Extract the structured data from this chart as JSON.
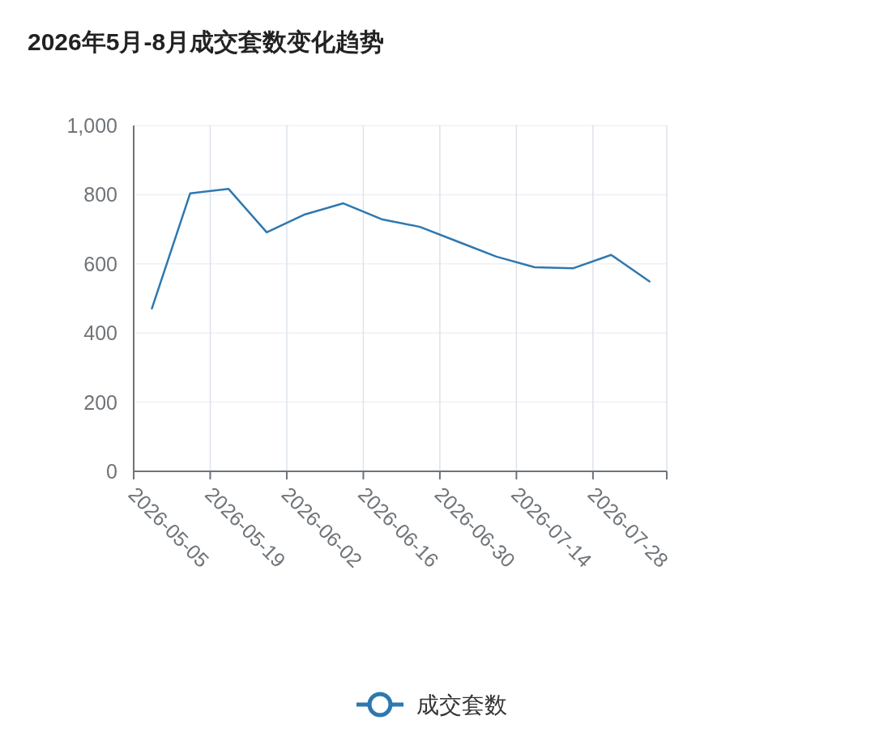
{
  "chart_data": {
    "type": "line",
    "title": "2026年5月-8月成交套数变化趋势",
    "x": [
      "2026-05-08T08:00",
      "2026-05-15T08:00",
      "2026-05-22T08:00",
      "2026-05-29T08:00",
      "2026-06-05T08:00",
      "2026-06-12T08:00",
      "2026-06-19T08:00",
      "2026-06-26T08:00",
      "2026-07-03T08:00",
      "2026-07-10T08:00",
      "2026-07-17T08:00",
      "2026-07-24T08:00",
      "2026-07-31T08:00",
      "2026-08-07T08:00"
    ],
    "series": [
      {
        "name": "成交套数",
        "color": "#2e78b0",
        "values": [
          471,
          804,
          817,
          691,
          743,
          775,
          729,
          707,
          664,
          621,
          590,
          587,
          626,
          549
        ]
      }
    ],
    "xlim": [
      "2026-05-05",
      "2026-08-10T12:00"
    ],
    "xticks": [
      "2026-05-05",
      "2026-05-19",
      "2026-06-02",
      "2026-06-16",
      "2026-06-30",
      "2026-07-14",
      "2026-07-28"
    ],
    "ylim": [
      0,
      1000
    ],
    "yticks": [
      0,
      200,
      400,
      600,
      800,
      {
        "value": 1000,
        "label": "1,000"
      }
    ],
    "grid": true,
    "legend": "bottom",
    "marker": "none",
    "line_style": "solid"
  }
}
